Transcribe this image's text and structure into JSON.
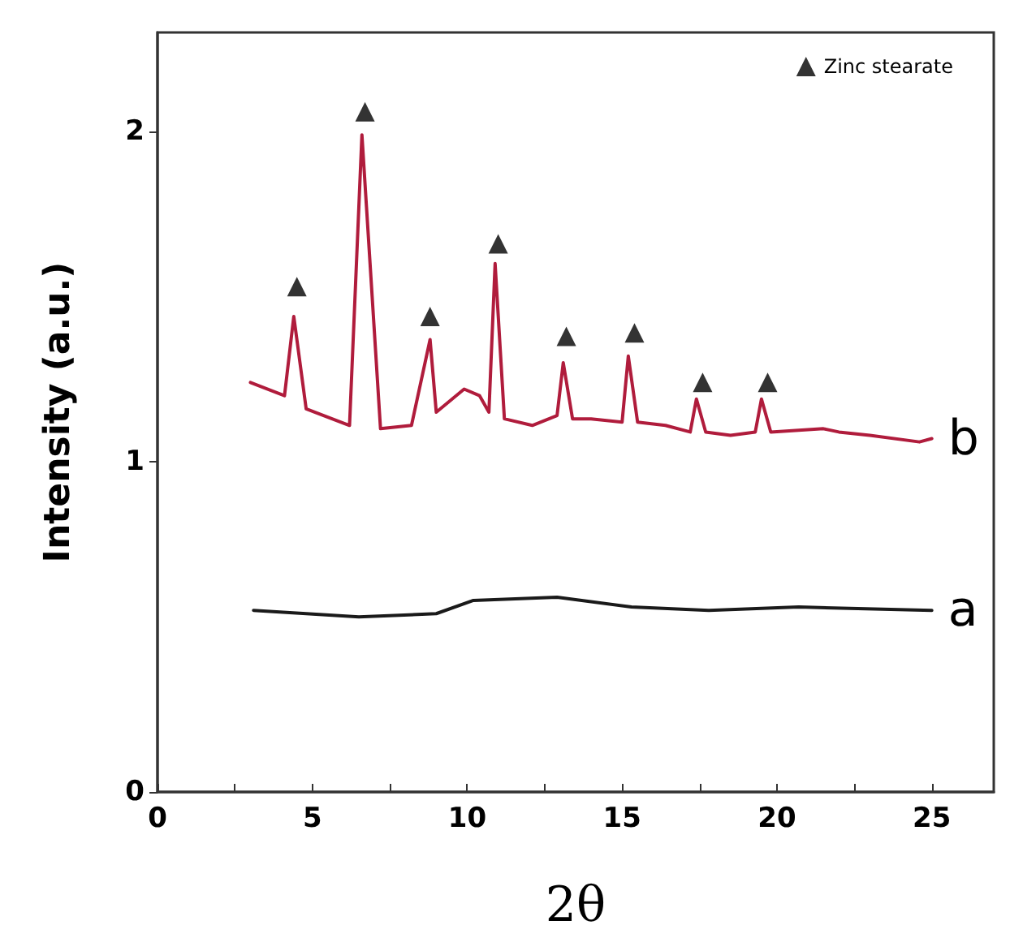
{
  "chart_data": {
    "type": "line",
    "xlabel": "2θ",
    "ylabel": "Intensity (a.u.)",
    "xlim": [
      0,
      27
    ],
    "ylim": [
      0,
      2.3
    ],
    "xticks": [
      0,
      {
        "value": 2.5,
        "label": null
      },
      5,
      {
        "value": 7.5,
        "label": null
      },
      10,
      {
        "value": 12.5,
        "label": null
      },
      15,
      {
        "value": 17.5,
        "label": null
      },
      20,
      {
        "value": 22.5,
        "label": null
      },
      25
    ],
    "yticks": [
      0,
      1,
      2
    ],
    "grid": false,
    "legend": "top right",
    "line_style": "solid",
    "marker": "none",
    "series": [
      {
        "name": "b",
        "color": "#b01c3c",
        "x": [
          3.0,
          4.1,
          4.4,
          4.8,
          6.2,
          6.6,
          7.2,
          8.2,
          8.8,
          9.0,
          9.9,
          10.4,
          10.7,
          10.9,
          11.2,
          12.1,
          12.9,
          13.1,
          13.4,
          14.0,
          15.0,
          15.2,
          15.5,
          16.4,
          17.2,
          17.4,
          17.7,
          18.5,
          19.3,
          19.5,
          19.8,
          21.5,
          22.0,
          23.0,
          24.6,
          25.0
        ],
        "values": [
          1.24,
          1.2,
          1.44,
          1.16,
          1.11,
          1.99,
          1.1,
          1.11,
          1.37,
          1.15,
          1.22,
          1.2,
          1.15,
          1.6,
          1.13,
          1.11,
          1.14,
          1.3,
          1.13,
          1.13,
          1.12,
          1.32,
          1.12,
          1.11,
          1.09,
          1.19,
          1.09,
          1.08,
          1.09,
          1.19,
          1.09,
          1.1,
          1.09,
          1.08,
          1.06,
          1.07
        ]
      },
      {
        "name": "a",
        "color": "#1a1a1a",
        "x": [
          3.1,
          6.5,
          9.0,
          10.2,
          12.9,
          15.3,
          17.8,
          20.7,
          25.0
        ],
        "values": [
          0.55,
          0.53,
          0.54,
          0.58,
          0.59,
          0.56,
          0.55,
          0.56,
          0.55
        ]
      },
      {
        "name": "Zinc stearate",
        "type": "scatter",
        "marker": "triangle",
        "color": "#000000",
        "x": [
          4.5,
          6.7,
          8.8,
          11.0,
          13.2,
          15.4,
          17.6,
          19.7
        ],
        "values": [
          1.53,
          2.06,
          1.44,
          1.66,
          1.38,
          1.39,
          1.24,
          1.24
        ]
      }
    ]
  }
}
